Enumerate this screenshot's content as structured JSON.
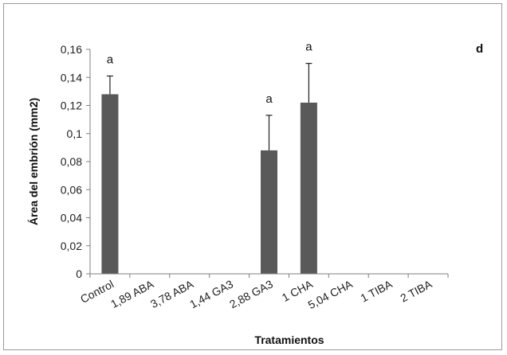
{
  "chart_data": {
    "type": "bar",
    "title": "",
    "panel_label": "d",
    "xlabel": "Tratamientos",
    "ylabel": "Área del embrión (mm2)",
    "ylim": [
      0,
      0.16
    ],
    "yticks": [
      0,
      0.02,
      0.04,
      0.06,
      0.08,
      0.1,
      0.12,
      0.14,
      0.16
    ],
    "ytick_labels": [
      "0",
      "0,02",
      "0,04",
      "0,06",
      "0,08",
      "0,1",
      "0,12",
      "0,14",
      "0,16"
    ],
    "categories": [
      "Control",
      "1,89 ABA",
      "3,78 ABA",
      "1,44 GA3",
      "2,88 GA3",
      "1 CHA",
      "5,04 CHA",
      "1 TIBA",
      "2 TIBA"
    ],
    "values": [
      0.128,
      0,
      0,
      0,
      0.088,
      0.122,
      0,
      0,
      0
    ],
    "errors": [
      0.013,
      0,
      0,
      0,
      0.025,
      0.028,
      0,
      0,
      0
    ],
    "annotations": [
      "a",
      "",
      "",
      "",
      "a",
      "a",
      "",
      "",
      ""
    ],
    "bar_color": "#595959",
    "grid": false,
    "legend": "none"
  }
}
